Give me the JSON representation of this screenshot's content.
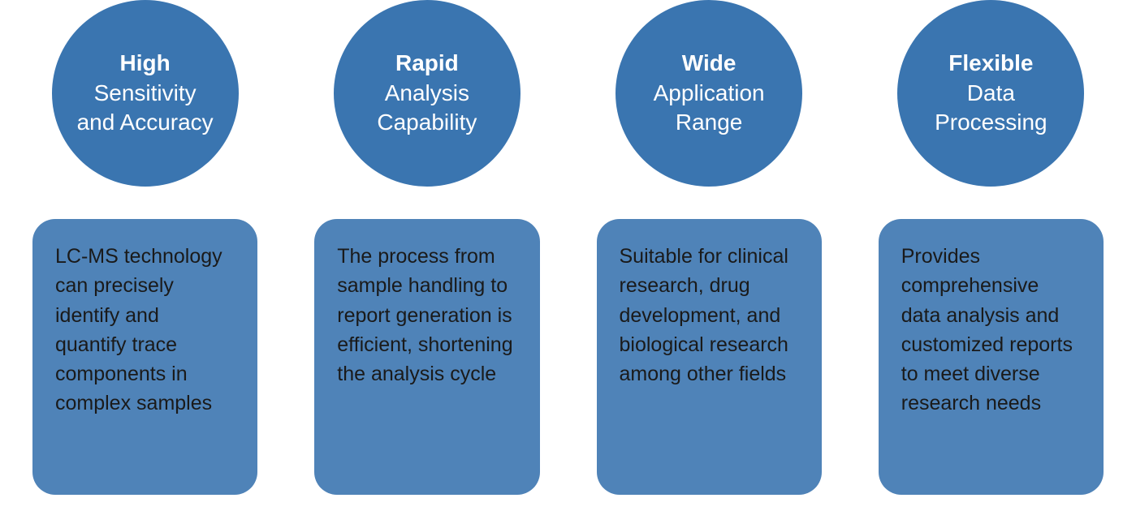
{
  "layout": {
    "circle_diameter": 230,
    "circle_color": "#3a75b0",
    "circle_text_color": "#ffffff",
    "circle_title_fontsize": 28,
    "circle_title_fontweight": 700,
    "circle_sub_fontsize": 28,
    "circle_sub_fontweight": 400,
    "card_color": "#4f83b8",
    "card_text_color": "#1a1a1a",
    "card_fontsize": 25,
    "card_border_radius": 28,
    "background_color": "#ffffff",
    "column_gap": 70,
    "card_min_height": 340
  },
  "items": [
    {
      "title": "High",
      "subtitle_line1": "Sensitivity",
      "subtitle_line2": "and Accuracy",
      "description": "LC-MS technology can precisely identify and quantify trace components in complex samples"
    },
    {
      "title": "Rapid",
      "subtitle_line1": "Analysis",
      "subtitle_line2": "Capability",
      "description": "The process from sample handling to report generation is efficient, shortening the analysis cycle"
    },
    {
      "title": "Wide",
      "subtitle_line1": "Application",
      "subtitle_line2": "Range",
      "description": "Suitable for clinical research, drug development, and biological research among other fields"
    },
    {
      "title": "Flexible",
      "subtitle_line1": "Data",
      "subtitle_line2": "Processing",
      "description": "Provides comprehensive data analysis and customized reports to meet diverse research needs"
    }
  ]
}
